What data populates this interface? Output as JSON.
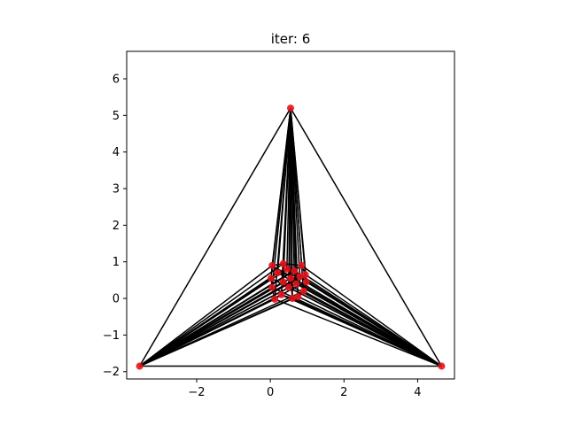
{
  "chart_data": {
    "type": "scatter",
    "title": "iter: 6",
    "xlabel": "",
    "ylabel": "",
    "xlim": [
      -3.9,
      5.0
    ],
    "ylim": [
      -2.2,
      6.75
    ],
    "grid": false,
    "legend": "none",
    "xticks": [
      -2,
      0,
      2,
      4
    ],
    "xtick_labels": [
      "−2",
      "0",
      "2",
      "4"
    ],
    "yticks": [
      -2,
      -1,
      0,
      1,
      2,
      3,
      4,
      5,
      6
    ],
    "ytick_labels": [
      "−2",
      "−1",
      "0",
      "1",
      "2",
      "3",
      "4",
      "5",
      "6"
    ],
    "colors": {
      "points": "#e8121b",
      "edges": "#000000",
      "frame": "#000000"
    },
    "outer_nodes": [
      {
        "x": 0.55,
        "y": 5.2
      },
      {
        "x": -3.55,
        "y": -1.85
      },
      {
        "x": 4.65,
        "y": -1.85
      }
    ],
    "inner_nodes": [
      {
        "x": 0.05,
        "y": 0.9
      },
      {
        "x": 0.35,
        "y": 0.95
      },
      {
        "x": 0.85,
        "y": 0.9
      },
      {
        "x": 0.95,
        "y": 0.65
      },
      {
        "x": 0.98,
        "y": 0.45
      },
      {
        "x": 0.9,
        "y": 0.2
      },
      {
        "x": 0.75,
        "y": 0.05
      },
      {
        "x": 0.6,
        "y": 0.0
      },
      {
        "x": 0.3,
        "y": 0.1
      },
      {
        "x": 0.12,
        "y": -0.02
      },
      {
        "x": 0.05,
        "y": 0.3
      },
      {
        "x": 0.02,
        "y": 0.55
      },
      {
        "x": 0.2,
        "y": 0.7
      },
      {
        "x": 0.45,
        "y": 0.8
      },
      {
        "x": 0.65,
        "y": 0.75
      },
      {
        "x": 0.7,
        "y": 0.4
      },
      {
        "x": 0.5,
        "y": 0.3
      },
      {
        "x": 0.35,
        "y": 0.45
      },
      {
        "x": 0.55,
        "y": 0.55
      },
      {
        "x": 0.8,
        "y": 0.6
      }
    ],
    "edges": [
      [
        0,
        1
      ],
      [
        1,
        2
      ],
      [
        2,
        0
      ],
      [
        0,
        3
      ],
      [
        0,
        4
      ],
      [
        0,
        5
      ],
      [
        0,
        6
      ],
      [
        0,
        7
      ],
      [
        0,
        8
      ],
      [
        0,
        9
      ],
      [
        0,
        10
      ],
      [
        0,
        11
      ],
      [
        0,
        12
      ],
      [
        0,
        13
      ],
      [
        0,
        14
      ],
      [
        0,
        15
      ],
      [
        0,
        16
      ],
      [
        0,
        17
      ],
      [
        0,
        18
      ],
      [
        0,
        19
      ],
      [
        0,
        20
      ],
      [
        0,
        21
      ],
      [
        0,
        22
      ],
      [
        1,
        3
      ],
      [
        1,
        4
      ],
      [
        1,
        5
      ],
      [
        1,
        6
      ],
      [
        1,
        7
      ],
      [
        1,
        8
      ],
      [
        1,
        9
      ],
      [
        1,
        10
      ],
      [
        1,
        11
      ],
      [
        1,
        12
      ],
      [
        1,
        13
      ],
      [
        1,
        14
      ],
      [
        1,
        15
      ],
      [
        1,
        16
      ],
      [
        1,
        17
      ],
      [
        1,
        18
      ],
      [
        1,
        19
      ],
      [
        1,
        20
      ],
      [
        1,
        21
      ],
      [
        1,
        22
      ],
      [
        2,
        3
      ],
      [
        2,
        4
      ],
      [
        2,
        5
      ],
      [
        2,
        6
      ],
      [
        2,
        7
      ],
      [
        2,
        8
      ],
      [
        2,
        9
      ],
      [
        2,
        10
      ],
      [
        2,
        11
      ],
      [
        2,
        12
      ],
      [
        2,
        13
      ],
      [
        2,
        14
      ],
      [
        2,
        15
      ],
      [
        2,
        16
      ],
      [
        2,
        17
      ],
      [
        2,
        18
      ],
      [
        2,
        19
      ],
      [
        2,
        20
      ],
      [
        2,
        21
      ],
      [
        2,
        22
      ],
      [
        3,
        4
      ],
      [
        4,
        5
      ],
      [
        5,
        6
      ],
      [
        6,
        7
      ],
      [
        7,
        8
      ],
      [
        8,
        9
      ],
      [
        9,
        10
      ],
      [
        10,
        11
      ],
      [
        11,
        12
      ],
      [
        12,
        13
      ],
      [
        13,
        14
      ],
      [
        14,
        3
      ],
      [
        15,
        16
      ],
      [
        16,
        17
      ],
      [
        17,
        18
      ],
      [
        18,
        19
      ],
      [
        19,
        20
      ],
      [
        20,
        21
      ],
      [
        21,
        22
      ],
      [
        22,
        15
      ],
      [
        3,
        15
      ],
      [
        6,
        18
      ],
      [
        10,
        21
      ]
    ]
  }
}
